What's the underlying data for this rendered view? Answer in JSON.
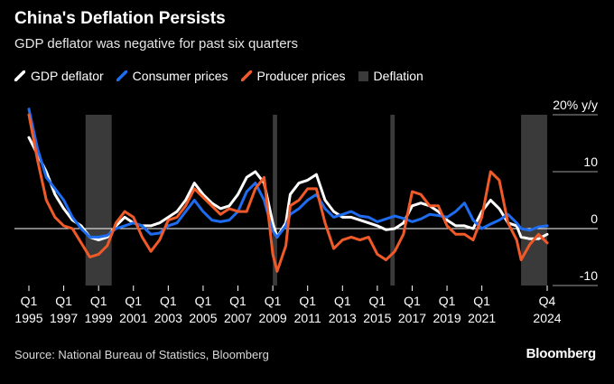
{
  "header": {
    "title": "China's Deflation Persists",
    "subtitle": "GDP deflator was negative for past six quarters"
  },
  "footer": {
    "source": "Source: National Bureau of Statistics, Bloomberg",
    "brand": "Bloomberg"
  },
  "chart_data": {
    "type": "line",
    "legend_position": "top-left",
    "grid": false,
    "y_axis": {
      "position": "right",
      "ylim": [
        -10,
        20
      ],
      "ticks": [
        20,
        10,
        0,
        -10
      ],
      "tick_labels": [
        "20% y/y",
        "10",
        "0",
        "-10"
      ],
      "zero_line": true
    },
    "x_axis": {
      "xlim": [
        "1995Q1",
        "2024Q4"
      ],
      "ticks": [
        {
          "q": "1995Q1",
          "top": "Q1",
          "bottom": "1995"
        },
        {
          "q": "1997Q1",
          "top": "Q1",
          "bottom": "1997"
        },
        {
          "q": "1999Q1",
          "top": "Q1",
          "bottom": "1999"
        },
        {
          "q": "2001Q1",
          "top": "Q1",
          "bottom": "2001"
        },
        {
          "q": "2003Q1",
          "top": "Q1",
          "bottom": "2003"
        },
        {
          "q": "2005Q1",
          "top": "Q1",
          "bottom": "2005"
        },
        {
          "q": "2007Q1",
          "top": "Q1",
          "bottom": "2007"
        },
        {
          "q": "2009Q1",
          "top": "Q1",
          "bottom": "2009"
        },
        {
          "q": "2011Q1",
          "top": "Q1",
          "bottom": "2011"
        },
        {
          "q": "2013Q1",
          "top": "Q1",
          "bottom": "2013"
        },
        {
          "q": "2015Q1",
          "top": "Q1",
          "bottom": "2015"
        },
        {
          "q": "2017Q1",
          "top": "Q1",
          "bottom": "2017"
        },
        {
          "q": "2019Q1",
          "top": "Q1",
          "bottom": "2019"
        },
        {
          "q": "2021Q1",
          "top": "Q1",
          "bottom": "2021"
        },
        {
          "q": "2024Q4",
          "top": "Q4",
          "bottom": "2024"
        }
      ]
    },
    "deflation_periods": [
      {
        "start": "1998Q2",
        "end": "1999Q4"
      },
      {
        "start": "2009Q1",
        "end": "2009Q2"
      },
      {
        "start": "2015Q4",
        "end": "2016Q1"
      },
      {
        "start": "2023Q2",
        "end": "2024Q4"
      }
    ],
    "series": [
      {
        "name": "GDP deflator",
        "color": "#ffffff",
        "points": [
          [
            "1995Q1",
            16
          ],
          [
            "1995Q3",
            13
          ],
          [
            "1996Q1",
            10
          ],
          [
            "1996Q3",
            6
          ],
          [
            "1997Q1",
            3.5
          ],
          [
            "1997Q3",
            1.5
          ],
          [
            "1998Q1",
            0.5
          ],
          [
            "1998Q3",
            -1.5
          ],
          [
            "1999Q1",
            -2
          ],
          [
            "1999Q3",
            -1.5
          ],
          [
            "2000Q1",
            0.5
          ],
          [
            "2000Q3",
            2
          ],
          [
            "2001Q1",
            1
          ],
          [
            "2001Q3",
            0.5
          ],
          [
            "2002Q1",
            0.5
          ],
          [
            "2002Q3",
            1
          ],
          [
            "2003Q1",
            2
          ],
          [
            "2003Q3",
            3
          ],
          [
            "2004Q1",
            5
          ],
          [
            "2004Q3",
            8
          ],
          [
            "2005Q1",
            6
          ],
          [
            "2005Q3",
            4.5
          ],
          [
            "2006Q1",
            3.5
          ],
          [
            "2006Q3",
            4
          ],
          [
            "2007Q1",
            6
          ],
          [
            "2007Q3",
            9
          ],
          [
            "2008Q1",
            10
          ],
          [
            "2008Q3",
            8
          ],
          [
            "2009Q1",
            1
          ],
          [
            "2009Q2",
            -1.5
          ],
          [
            "2009Q4",
            1
          ],
          [
            "2010Q1",
            6
          ],
          [
            "2010Q3",
            8
          ],
          [
            "2011Q1",
            8.5
          ],
          [
            "2011Q3",
            9.5
          ],
          [
            "2012Q1",
            5
          ],
          [
            "2012Q3",
            3
          ],
          [
            "2013Q1",
            2
          ],
          [
            "2013Q3",
            2
          ],
          [
            "2014Q1",
            1.5
          ],
          [
            "2014Q3",
            1
          ],
          [
            "2015Q1",
            0.5
          ],
          [
            "2015Q3",
            -0.2
          ],
          [
            "2016Q1",
            0
          ],
          [
            "2016Q3",
            1
          ],
          [
            "2017Q1",
            4
          ],
          [
            "2017Q3",
            4.5
          ],
          [
            "2018Q1",
            4
          ],
          [
            "2018Q3",
            3
          ],
          [
            "2019Q1",
            1.5
          ],
          [
            "2019Q3",
            0.5
          ],
          [
            "2020Q1",
            0.5
          ],
          [
            "2020Q3",
            0
          ],
          [
            "2021Q1",
            3
          ],
          [
            "2021Q3",
            5
          ],
          [
            "2022Q1",
            3.5
          ],
          [
            "2022Q3",
            1
          ],
          [
            "2023Q1",
            0.5
          ],
          [
            "2023Q2",
            -1.5
          ],
          [
            "2023Q4",
            -1.8
          ],
          [
            "2024Q2",
            -1.8
          ],
          [
            "2024Q4",
            -1
          ]
        ]
      },
      {
        "name": "Consumer prices",
        "color": "#1e6cf0",
        "points": [
          [
            "1995Q1",
            21
          ],
          [
            "1995Q3",
            14
          ],
          [
            "1996Q1",
            9
          ],
          [
            "1996Q3",
            7
          ],
          [
            "1997Q1",
            5
          ],
          [
            "1997Q3",
            2
          ],
          [
            "1998Q1",
            0
          ],
          [
            "1998Q3",
            -1.5
          ],
          [
            "1999Q1",
            -1.5
          ],
          [
            "1999Q3",
            -1.2
          ],
          [
            "2000Q1",
            0
          ],
          [
            "2000Q3",
            0.5
          ],
          [
            "2001Q1",
            1
          ],
          [
            "2001Q3",
            0.5
          ],
          [
            "2002Q1",
            -1
          ],
          [
            "2002Q3",
            -0.8
          ],
          [
            "2003Q1",
            0.5
          ],
          [
            "2003Q3",
            1
          ],
          [
            "2004Q1",
            3
          ],
          [
            "2004Q3",
            5
          ],
          [
            "2005Q1",
            3
          ],
          [
            "2005Q3",
            1.5
          ],
          [
            "2006Q1",
            1.2
          ],
          [
            "2006Q3",
            1.5
          ],
          [
            "2007Q1",
            3
          ],
          [
            "2007Q3",
            6.5
          ],
          [
            "2008Q1",
            8
          ],
          [
            "2008Q3",
            5
          ],
          [
            "2009Q1",
            -0.5
          ],
          [
            "2009Q2",
            -1.5
          ],
          [
            "2009Q4",
            0.5
          ],
          [
            "2010Q1",
            2.5
          ],
          [
            "2010Q3",
            3.5
          ],
          [
            "2011Q1",
            5
          ],
          [
            "2011Q3",
            6
          ],
          [
            "2012Q1",
            3.5
          ],
          [
            "2012Q3",
            2
          ],
          [
            "2013Q1",
            2.5
          ],
          [
            "2013Q3",
            3
          ],
          [
            "2014Q1",
            2.2
          ],
          [
            "2014Q3",
            2
          ],
          [
            "2015Q1",
            1.2
          ],
          [
            "2015Q3",
            1.7
          ],
          [
            "2016Q1",
            2.2
          ],
          [
            "2016Q3",
            1.8
          ],
          [
            "2017Q1",
            1.2
          ],
          [
            "2017Q3",
            1.7
          ],
          [
            "2018Q1",
            2.5
          ],
          [
            "2018Q3",
            2.3
          ],
          [
            "2019Q1",
            2
          ],
          [
            "2019Q3",
            3
          ],
          [
            "2020Q1",
            4.5
          ],
          [
            "2020Q3",
            1.5
          ],
          [
            "2021Q1",
            0
          ],
          [
            "2021Q3",
            0.8
          ],
          [
            "2022Q1",
            1.5
          ],
          [
            "2022Q3",
            2.5
          ],
          [
            "2023Q1",
            1
          ],
          [
            "2023Q2",
            0
          ],
          [
            "2023Q4",
            -0.3
          ],
          [
            "2024Q2",
            0.3
          ],
          [
            "2024Q4",
            0.5
          ]
        ]
      },
      {
        "name": "Producer prices",
        "color": "#f05a28",
        "points": [
          [
            "1995Q1",
            20
          ],
          [
            "1995Q3",
            12
          ],
          [
            "1996Q1",
            5
          ],
          [
            "1996Q3",
            2
          ],
          [
            "1997Q1",
            0.5
          ],
          [
            "1997Q3",
            0
          ],
          [
            "1998Q1",
            -2.5
          ],
          [
            "1998Q3",
            -5
          ],
          [
            "1999Q1",
            -4.5
          ],
          [
            "1999Q3",
            -3
          ],
          [
            "2000Q1",
            1
          ],
          [
            "2000Q3",
            3
          ],
          [
            "2001Q1",
            2
          ],
          [
            "2001Q3",
            -1.5
          ],
          [
            "2002Q1",
            -4
          ],
          [
            "2002Q3",
            -2
          ],
          [
            "2003Q1",
            1.5
          ],
          [
            "2003Q3",
            2
          ],
          [
            "2004Q1",
            4
          ],
          [
            "2004Q3",
            7
          ],
          [
            "2005Q1",
            5.5
          ],
          [
            "2005Q3",
            4
          ],
          [
            "2006Q1",
            2.5
          ],
          [
            "2006Q3",
            3.5
          ],
          [
            "2007Q1",
            3
          ],
          [
            "2007Q3",
            3
          ],
          [
            "2008Q1",
            7
          ],
          [
            "2008Q3",
            9
          ],
          [
            "2009Q1",
            -4.5
          ],
          [
            "2009Q2",
            -7.5
          ],
          [
            "2009Q4",
            -3
          ],
          [
            "2010Q1",
            4
          ],
          [
            "2010Q3",
            5
          ],
          [
            "2011Q1",
            7
          ],
          [
            "2011Q3",
            7
          ],
          [
            "2012Q1",
            1
          ],
          [
            "2012Q3",
            -3.5
          ],
          [
            "2013Q1",
            -2
          ],
          [
            "2013Q3",
            -1.5
          ],
          [
            "2014Q1",
            -2
          ],
          [
            "2014Q3",
            -1.5
          ],
          [
            "2015Q1",
            -4.5
          ],
          [
            "2015Q3",
            -5.5
          ],
          [
            "2016Q1",
            -4
          ],
          [
            "2016Q3",
            -1
          ],
          [
            "2017Q1",
            6.5
          ],
          [
            "2017Q3",
            6
          ],
          [
            "2018Q1",
            4
          ],
          [
            "2018Q3",
            4
          ],
          [
            "2019Q1",
            0.5
          ],
          [
            "2019Q3",
            -1
          ],
          [
            "2020Q1",
            -1
          ],
          [
            "2020Q3",
            -2
          ],
          [
            "2021Q1",
            2
          ],
          [
            "2021Q3",
            10
          ],
          [
            "2022Q1",
            8.5
          ],
          [
            "2022Q3",
            1
          ],
          [
            "2023Q1",
            -2
          ],
          [
            "2023Q2",
            -5.5
          ],
          [
            "2023Q4",
            -2.8
          ],
          [
            "2024Q2",
            -1
          ],
          [
            "2024Q4",
            -2.5
          ]
        ]
      }
    ],
    "legend": [
      {
        "label": "GDP deflator",
        "kind": "line",
        "color": "#ffffff"
      },
      {
        "label": "Consumer prices",
        "kind": "line",
        "color": "#1e6cf0"
      },
      {
        "label": "Producer prices",
        "kind": "line",
        "color": "#f05a28"
      },
      {
        "label": "Deflation",
        "kind": "box",
        "color": "#3a3a3a"
      }
    ]
  }
}
